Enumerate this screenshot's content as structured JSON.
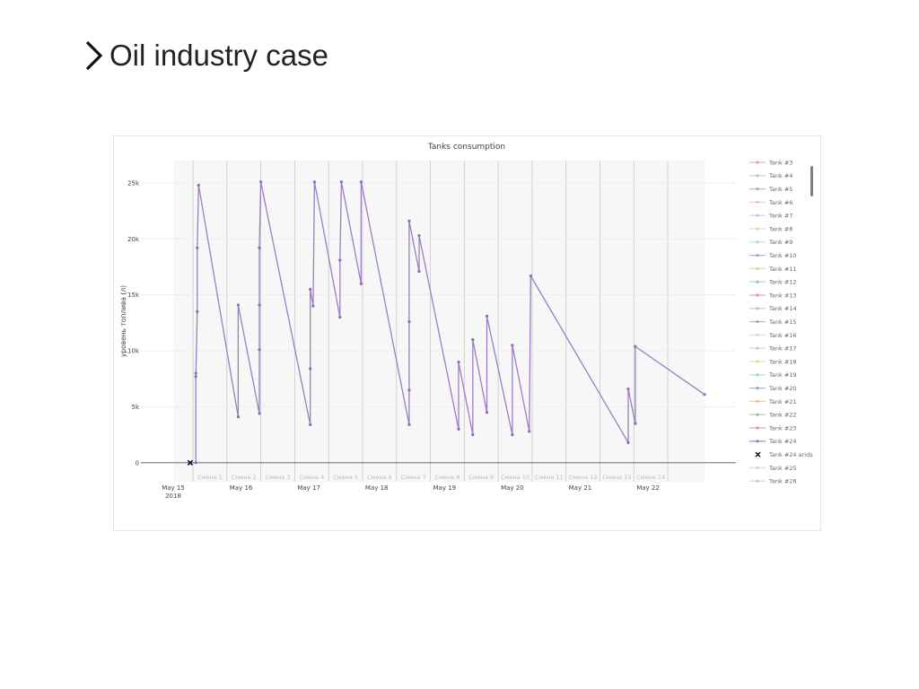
{
  "page": {
    "title": "Oil industry case"
  },
  "colors": {
    "series": "#9b7fc0",
    "marker": "#8a6fb3",
    "grid": "#ececec",
    "plot_bg": "#f7f7f7"
  },
  "chart_data": {
    "type": "line",
    "title": "Tanks consumption",
    "ylabel": "уровень топлива (л)",
    "xlabel": "",
    "x_axis": "date",
    "x_range": [
      "2018-05-15",
      "2018-05-22 20:00"
    ],
    "ylim": [
      -1700,
      27000
    ],
    "y_ticks": [
      {
        "value": 0,
        "label": "0"
      },
      {
        "value": 5000,
        "label": "5k"
      },
      {
        "value": 10000,
        "label": "10k"
      },
      {
        "value": 15000,
        "label": "15k"
      },
      {
        "value": 20000,
        "label": "20k"
      },
      {
        "value": 25000,
        "label": "25k"
      }
    ],
    "x_ticks": [
      {
        "date": "2018-05-15",
        "label": "May 15",
        "sublabel": "2018"
      },
      {
        "date": "2018-05-16",
        "label": "May 16"
      },
      {
        "date": "2018-05-17",
        "label": "May 17"
      },
      {
        "date": "2018-05-18",
        "label": "May 18"
      },
      {
        "date": "2018-05-19",
        "label": "May 19"
      },
      {
        "date": "2018-05-20",
        "label": "May 20"
      },
      {
        "date": "2018-05-21",
        "label": "May 21"
      },
      {
        "date": "2018-05-22",
        "label": "May 22"
      }
    ],
    "shifts": [
      {
        "label": "Смена 1",
        "start": "2018-05-15 07:00",
        "end": "2018-05-15 19:00"
      },
      {
        "label": "Смена 2",
        "start": "2018-05-15 19:00",
        "end": "2018-05-16 07:00"
      },
      {
        "label": "Смена 3",
        "start": "2018-05-16 07:00",
        "end": "2018-05-16 19:00"
      },
      {
        "label": "Смена 4",
        "start": "2018-05-16 19:00",
        "end": "2018-05-17 07:00"
      },
      {
        "label": "Смена 5",
        "start": "2018-05-17 07:00",
        "end": "2018-05-17 19:00"
      },
      {
        "label": "Смена 6",
        "start": "2018-05-17 19:00",
        "end": "2018-05-18 07:00"
      },
      {
        "label": "Смена 7",
        "start": "2018-05-18 07:00",
        "end": "2018-05-18 19:00"
      },
      {
        "label": "Смена 8",
        "start": "2018-05-18 19:00",
        "end": "2018-05-19 07:00"
      },
      {
        "label": "Смена 9",
        "start": "2018-05-19 07:00",
        "end": "2018-05-19 19:00"
      },
      {
        "label": "Смена 10",
        "start": "2018-05-19 19:00",
        "end": "2018-05-20 07:00"
      },
      {
        "label": "Смена 11",
        "start": "2018-05-20 07:00",
        "end": "2018-05-20 19:00"
      },
      {
        "label": "Смена 12",
        "start": "2018-05-20 19:00",
        "end": "2018-05-21 07:00"
      },
      {
        "label": "Смена 13",
        "start": "2018-05-21 07:00",
        "end": "2018-05-21 19:00"
      },
      {
        "label": "Смена 14",
        "start": "2018-05-21 19:00",
        "end": "2018-05-22 07:00"
      }
    ],
    "series": [
      {
        "name": "Tank #24",
        "points": [
          {
            "x": "2018-05-15 08:00",
            "y": 0
          },
          {
            "x": "2018-05-15 08:00",
            "y": 8000
          },
          {
            "x": "2018-05-15 08:00",
            "y": 7700
          },
          {
            "x": "2018-05-15 08:30",
            "y": 13500
          },
          {
            "x": "2018-05-15 08:30",
            "y": 19200
          },
          {
            "x": "2018-05-15 09:00",
            "y": 24800
          },
          {
            "x": "2018-05-15 23:00",
            "y": 4100
          },
          {
            "x": "2018-05-15 23:00",
            "y": 14100
          },
          {
            "x": "2018-05-16 06:30",
            "y": 4400
          },
          {
            "x": "2018-05-16 06:30",
            "y": 10100
          },
          {
            "x": "2018-05-16 06:30",
            "y": 14100
          },
          {
            "x": "2018-05-16 06:30",
            "y": 19200
          },
          {
            "x": "2018-05-16 07:00",
            "y": 25100
          },
          {
            "x": "2018-05-17 00:30",
            "y": 3400
          },
          {
            "x": "2018-05-17 00:30",
            "y": 8400
          },
          {
            "x": "2018-05-17 00:30",
            "y": 15500
          },
          {
            "x": "2018-05-17 01:30",
            "y": 14000
          },
          {
            "x": "2018-05-17 02:00",
            "y": 25100
          },
          {
            "x": "2018-05-17 11:00",
            "y": 13000
          },
          {
            "x": "2018-05-17 11:00",
            "y": 18100
          },
          {
            "x": "2018-05-17 11:30",
            "y": 25100
          },
          {
            "x": "2018-05-17 18:30",
            "y": 16000
          },
          {
            "x": "2018-05-17 18:30",
            "y": 25100
          },
          {
            "x": "2018-05-18 11:30",
            "y": 3400
          },
          {
            "x": "2018-05-18 11:30",
            "y": 6500
          },
          {
            "x": "2018-05-18 11:30",
            "y": 12600
          },
          {
            "x": "2018-05-18 11:30",
            "y": 21600
          },
          {
            "x": "2018-05-18 15:00",
            "y": 17100
          },
          {
            "x": "2018-05-18 15:00",
            "y": 20300
          },
          {
            "x": "2018-05-19 05:00",
            "y": 3000
          },
          {
            "x": "2018-05-19 05:00",
            "y": 9000
          },
          {
            "x": "2018-05-19 10:00",
            "y": 2500
          },
          {
            "x": "2018-05-19 10:00",
            "y": 11000
          },
          {
            "x": "2018-05-19 15:00",
            "y": 4500
          },
          {
            "x": "2018-05-19 15:00",
            "y": 13100
          },
          {
            "x": "2018-05-20 00:00",
            "y": 2500
          },
          {
            "x": "2018-05-20 00:00",
            "y": 10500
          },
          {
            "x": "2018-05-20 06:00",
            "y": 2800
          },
          {
            "x": "2018-05-20 06:30",
            "y": 16700
          },
          {
            "x": "2018-05-21 17:00",
            "y": 1800
          },
          {
            "x": "2018-05-21 17:00",
            "y": 6600
          },
          {
            "x": "2018-05-21 19:30",
            "y": 3500
          },
          {
            "x": "2018-05-21 19:30",
            "y": 10400
          },
          {
            "x": "2018-05-22 20:00",
            "y": 6100
          }
        ]
      },
      {
        "name": "Tank #24 arids",
        "mode": "markers",
        "marker": "x",
        "points": [
          {
            "x": "2018-05-15 06:00",
            "y": 0
          }
        ]
      }
    ],
    "legend": {
      "placement": "right",
      "entries": [
        {
          "name": "Tank #3",
          "color": "#e07a7a"
        },
        {
          "name": "Tank #4",
          "color": "#9aa8c0"
        },
        {
          "name": "Tank #5",
          "color": "#8c8c8c"
        },
        {
          "name": "Tank #6",
          "color": "#f0a0b4"
        },
        {
          "name": "Tank #7",
          "color": "#b8a0d0"
        },
        {
          "name": "Tank #8",
          "color": "#c8d080"
        },
        {
          "name": "Tank #9",
          "color": "#80c8d8"
        },
        {
          "name": "Tank #10",
          "color": "#7088b8"
        },
        {
          "name": "Tank #11",
          "color": "#f0b060"
        },
        {
          "name": "Tank #12",
          "color": "#60b0a0"
        },
        {
          "name": "Tank #13",
          "color": "#e06060"
        },
        {
          "name": "Tank #14",
          "color": "#a098d0"
        },
        {
          "name": "Tank #15",
          "color": "#a08070"
        },
        {
          "name": "Tank #16",
          "color": "#f0b8c8"
        },
        {
          "name": "Tank #17",
          "color": "#b0b0b0"
        },
        {
          "name": "Tank #18",
          "color": "#d0d060"
        },
        {
          "name": "Tank #19",
          "color": "#60c0d0"
        },
        {
          "name": "Tank #20",
          "color": "#6080b0"
        },
        {
          "name": "Tank #21",
          "color": "#f0a060"
        },
        {
          "name": "Tank #22",
          "color": "#60a860"
        },
        {
          "name": "Tank #23",
          "color": "#d06060"
        },
        {
          "name": "Tank #24",
          "color": "#9b7fc0",
          "active": true
        },
        {
          "name": "Tank #24 arids",
          "color": "#111111",
          "marker": "x",
          "active": true
        },
        {
          "name": "Tank #25",
          "color": "#e0b0c8"
        },
        {
          "name": "Tank #26",
          "color": "#b0b0b0"
        }
      ]
    }
  }
}
